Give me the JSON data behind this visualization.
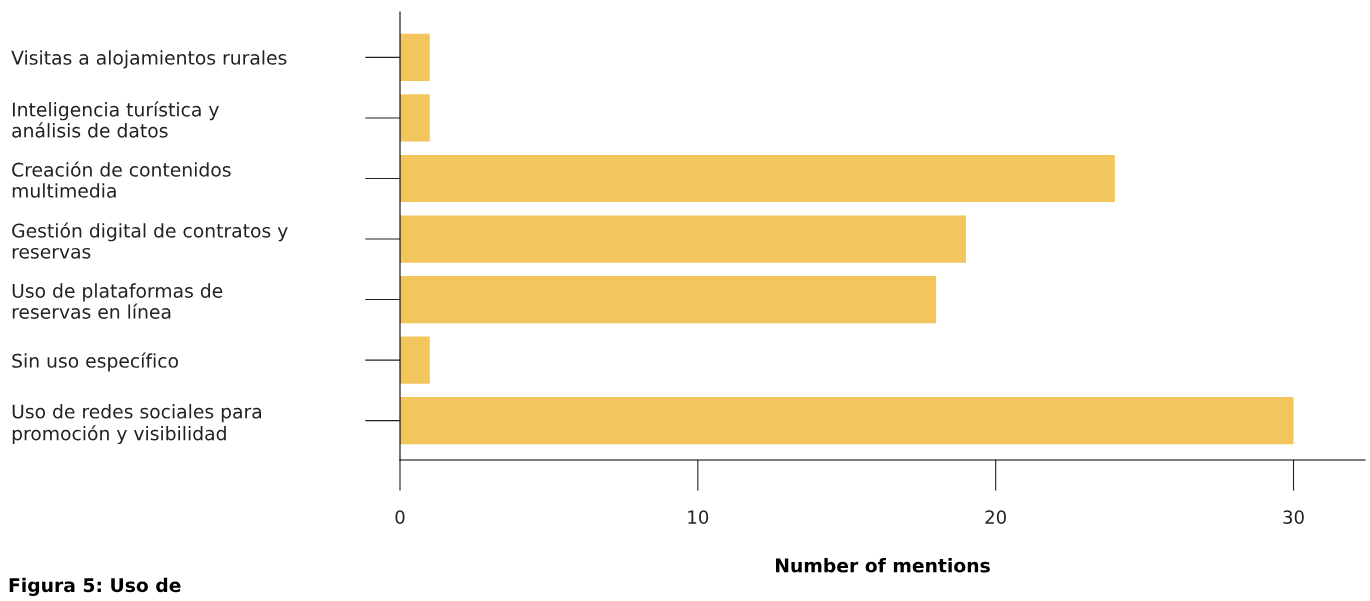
{
  "chart_data": {
    "type": "bar",
    "orientation": "horizontal",
    "title": "Figura 5: Uso de",
    "xlabel": "Number of mentions",
    "categories": [
      "Visitas a alojamientos rurales",
      "Inteligencia turística y\nanálisis de datos",
      "Creación de contenidos\nmultimedia",
      "Gestión digital de contratos y\nreservas",
      "Uso de plataformas de\nreservas en línea",
      "Sin uso específico",
      "Uso de redes sociales para\npromoción y visibilidad"
    ],
    "values": [
      1,
      1,
      24,
      19,
      18,
      1,
      30
    ],
    "color": "#f2c65c",
    "xlim": [
      0,
      32.4
    ],
    "xticks": [
      0,
      10,
      20,
      30
    ],
    "grid": false,
    "legend": false
  }
}
